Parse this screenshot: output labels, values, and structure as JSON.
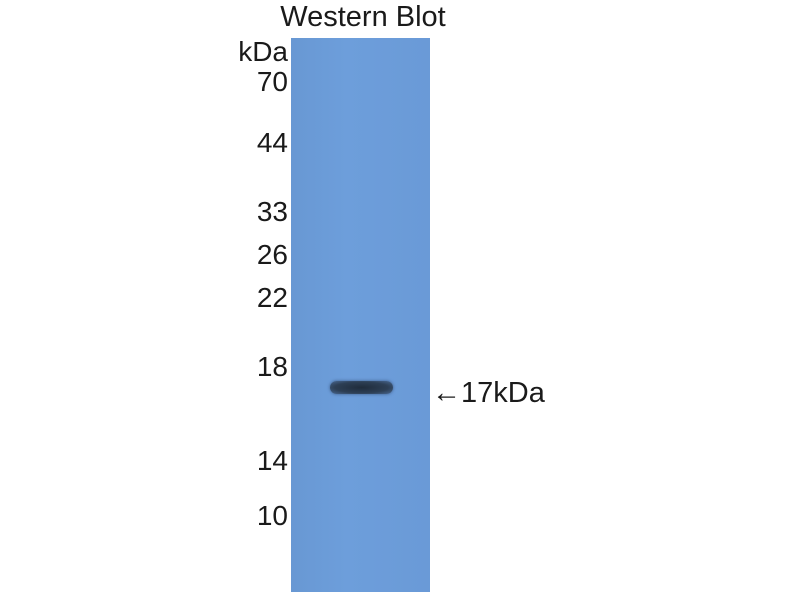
{
  "title": "Western Blot",
  "unit_label": "kDa",
  "markers": [
    "70",
    "44",
    "33",
    "26",
    "22",
    "18",
    "14",
    "10"
  ],
  "band_annotation": "←17kDa",
  "colors": {
    "membrane": "#6a9bd7",
    "band": "#2b3a4f"
  }
}
